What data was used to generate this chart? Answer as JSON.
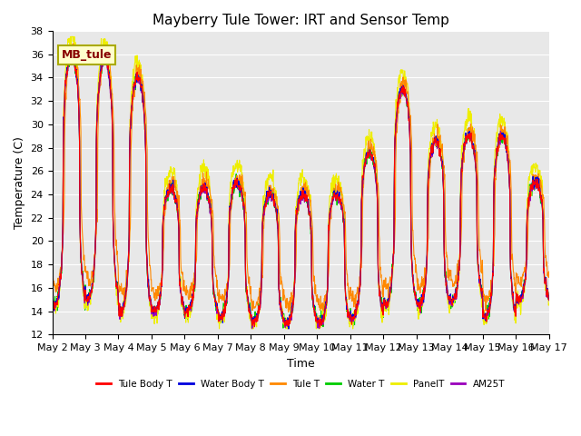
{
  "title": "Mayberry Tule Tower: IRT and Sensor Temp",
  "xlabel": "Time",
  "ylabel": "Temperature (C)",
  "ylim": [
    12,
    38
  ],
  "yticks": [
    12,
    14,
    16,
    18,
    20,
    22,
    24,
    26,
    28,
    30,
    32,
    34,
    36,
    38
  ],
  "x_start": 0,
  "x_end": 15,
  "num_points": 1440,
  "xtick_labels": [
    "May 2",
    "May 3",
    "May 4",
    "May 5",
    "May 6",
    "May 7",
    "May 8",
    "May 9",
    "May 10",
    "May 11",
    "May 12",
    "May 13",
    "May 14",
    "May 15",
    "May 16",
    "May 17"
  ],
  "xtick_positions": [
    0,
    1,
    2,
    3,
    4,
    5,
    6,
    7,
    8,
    9,
    10,
    11,
    12,
    13,
    14,
    15
  ],
  "series_colors": {
    "Tule Body T": "#ff0000",
    "Water Body T": "#0000dd",
    "Tule T": "#ff8800",
    "Water T": "#00cc00",
    "PanelT": "#eeee00",
    "AM25T": "#9900bb"
  },
  "series_order": [
    "Water T",
    "PanelT",
    "Tule T",
    "AM25T",
    "Water Body T",
    "Tule Body T"
  ],
  "legend_order": [
    "Tule Body T",
    "Water Body T",
    "Tule T",
    "Water T",
    "PanelT",
    "AM25T"
  ],
  "legend_label": "MB_tule",
  "legend_box_facecolor": "#ffffcc",
  "legend_box_edgecolor": "#aaaa00",
  "legend_text_color": "#880000",
  "background_color": "#e8e8e8",
  "grid_color": "#ffffff",
  "title_fontsize": 11,
  "axis_label_fontsize": 9,
  "tick_fontsize": 8,
  "day_peaks": [
    36,
    35.5,
    34,
    24.5,
    24.5,
    25,
    24,
    24,
    24,
    27.5,
    33,
    28.5,
    29,
    29,
    25
  ],
  "day_mins": [
    14.5,
    15,
    14,
    14,
    14,
    13.5,
    13,
    13,
    13,
    13.5,
    14.5,
    14.5,
    15,
    13.5,
    15
  ],
  "peak_time": 0.58,
  "trough_time": 0.21
}
